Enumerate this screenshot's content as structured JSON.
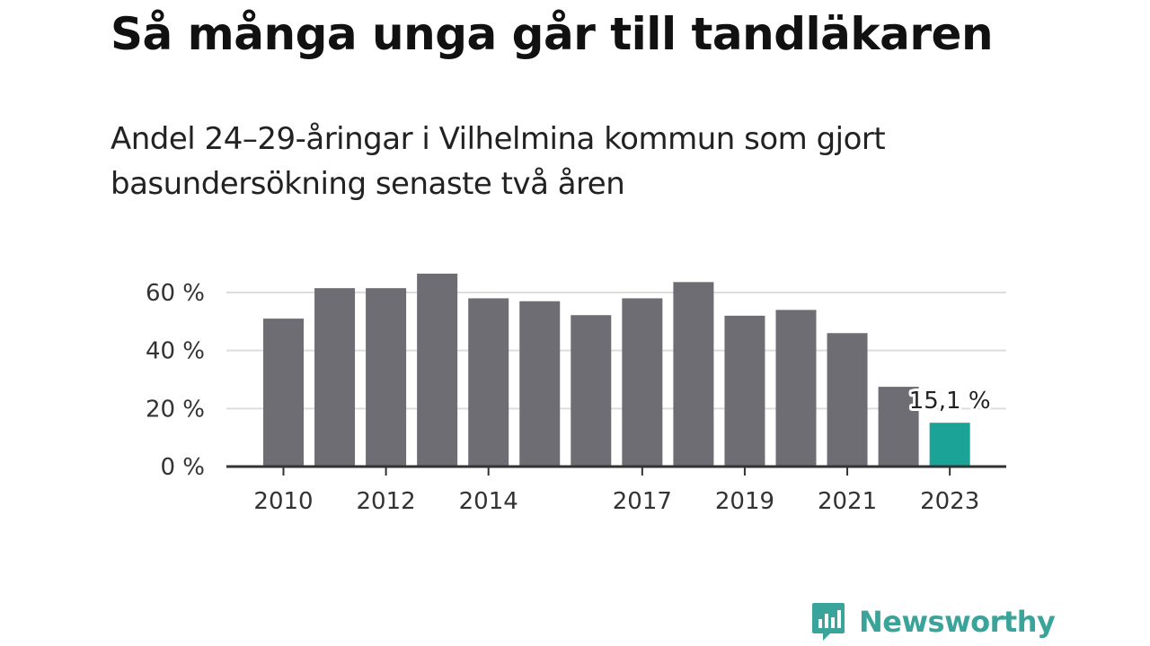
{
  "chart_data": {
    "type": "bar",
    "title": "Så många unga går till tandläkaren",
    "subtitle": "Andel 24–29-åringar i Vilhelmina kommun som gjort basundersökning senaste två åren",
    "categories": [
      "2010",
      "2011",
      "2012",
      "2013",
      "2014",
      "2015",
      "2016",
      "2017",
      "2018",
      "2019",
      "2020",
      "2021",
      "2022",
      "2023"
    ],
    "values": [
      51.0,
      61.5,
      61.5,
      66.5,
      58.0,
      57.0,
      52.2,
      58.0,
      63.6,
      52.0,
      54.0,
      46.0,
      27.5,
      15.1
    ],
    "x_tick_labels": [
      "2010",
      "2012",
      "2014",
      "2017",
      "2019",
      "2021",
      "2023"
    ],
    "y_ticks": [
      0,
      20,
      40,
      60
    ],
    "y_tick_labels": [
      "0 %",
      "20 %",
      "40 %",
      "60 %"
    ],
    "ylim": [
      0,
      66.5
    ],
    "xlabel": "",
    "ylabel": "",
    "grid": true,
    "highlight": {
      "category": "2023",
      "label": "15,1 %"
    },
    "colors": {
      "bar": "#6e6d73",
      "highlight": "#1aa396",
      "grid": "#dddddd",
      "axis": "#333333"
    }
  },
  "brand": {
    "name": "Newsworthy",
    "icon": "newsworthy-logo-icon",
    "color": "#3aa39a"
  }
}
